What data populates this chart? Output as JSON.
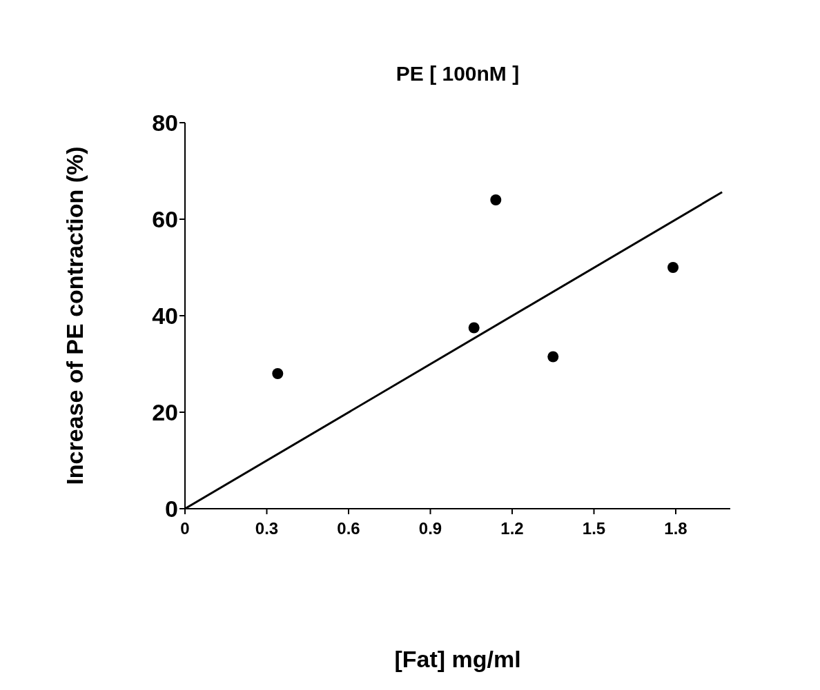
{
  "chart_data": {
    "type": "scatter",
    "title": "PE [ 100nM ]",
    "xlabel": "[Fat] mg/ml",
    "ylabel": "Increase of PE contraction (%)",
    "xlim": [
      0,
      2
    ],
    "xticks": [
      0,
      0.3,
      0.6,
      0.9,
      1.2,
      1.5,
      1.8
    ],
    "ylim": [
      0,
      80
    ],
    "yticks": [
      0,
      20,
      40,
      60,
      80
    ],
    "grid": false,
    "series": [
      {
        "marker": "circle",
        "color": "#000000",
        "x": [
          0.34,
          1.06,
          1.14,
          1.35,
          1.79
        ],
        "values": [
          28,
          37.5,
          64,
          31.5,
          50
        ]
      },
      {
        "type": "line",
        "marker": "none",
        "line_style": "solid",
        "color": "#000000",
        "x": [
          0,
          1.97
        ],
        "values": [
          0,
          65.6
        ]
      }
    ]
  }
}
